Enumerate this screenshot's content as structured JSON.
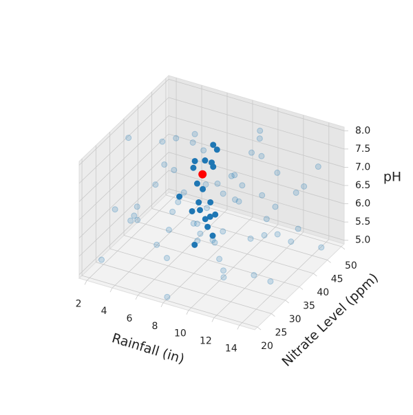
{
  "chart_data": {
    "type": "scatter3d",
    "xlabel": "Rainfall (in)",
    "ylabel": "Nitrate Level (ppm)",
    "zlabel": "pH",
    "xlim": [
      1.4,
      15.2
    ],
    "ylim": [
      19,
      51
    ],
    "zlim": [
      4.9,
      8.1
    ],
    "xticks": [
      2,
      4,
      6,
      8,
      10,
      12,
      14
    ],
    "yticks": [
      20,
      25,
      30,
      35,
      40,
      45,
      50
    ],
    "zticks": [
      {
        "value": 5,
        "label": "5.0"
      },
      5.5,
      {
        "value": 6,
        "label": "6.0"
      },
      6.5,
      {
        "value": 7,
        "label": "7.0"
      },
      7.5,
      {
        "value": 8,
        "label": "8.0"
      }
    ],
    "grid": true,
    "series": [
      {
        "color": "#1f77b4",
        "alpha": 0.2,
        "x": [
          2.5,
          3.1,
          4.0,
          5.2,
          6.3,
          7.5,
          8.8,
          9.9,
          11.2,
          12.4,
          13.6,
          14.7,
          2.2,
          3.7,
          4.9,
          6.1,
          7.0,
          8.3,
          9.4,
          10.6,
          11.8,
          13.0,
          14.2,
          2.9,
          4.4,
          5.6,
          6.8,
          8.1,
          9.2,
          10.3,
          11.5,
          12.7,
          14.0,
          3.3,
          5.0,
          6.6,
          7.8,
          9.6,
          10.9,
          12.1,
          13.3,
          14.5,
          2.6,
          4.2,
          5.9,
          7.2,
          8.6,
          10.0,
          11.0,
          12.9,
          13.8,
          3.9,
          6.0,
          9.0,
          10.7,
          12.3,
          14.9,
          2.0,
          7.6,
          11.4
        ],
        "y": [
          22,
          41,
          28,
          47,
          24,
          39,
          31,
          45,
          26,
          36,
          49,
          21,
          33,
          46,
          37,
          29,
          43,
          23,
          34,
          48,
          30,
          42,
          27,
          25,
          40,
          32,
          50,
          20,
          38,
          27,
          44,
          33,
          40,
          30,
          21,
          36,
          47,
          24,
          41,
          22,
          35,
          46,
          44,
          34,
          43,
          26,
          42,
          30,
          37,
          28,
          31,
          49,
          39,
          49,
          20,
          47,
          38,
          37,
          33,
          25
        ],
        "z": [
          5.3,
          7.2,
          6.1,
          5.8,
          7.6,
          5.1,
          6.7,
          7.9,
          5.6,
          6.4,
          7.0,
          6.2,
          7.8,
          5.5,
          6.9,
          5.2,
          6.3,
          7.4,
          5.9,
          6.6,
          7.7,
          5.4,
          6.8,
          6.5,
          7.5,
          5.7,
          6.0,
          5.0,
          7.1,
          6.2,
          5.3,
          7.3,
          6.0,
          6.0,
          6.7,
          7.9,
          5.6,
          6.4,
          7.6,
          5.8,
          6.9,
          5.1,
          6.3,
          5.0,
          7.1,
          6.8,
          6.1,
          5.5,
          8.0,
          6.5,
          5.2,
          6.9,
          5.4,
          7.3,
          7.0,
          6.3,
          7.4,
          5.6,
          6.0,
          7.8
        ]
      },
      {
        "color": "#1f77b4",
        "alpha": 1,
        "x": [
          8.2,
          8.5,
          8.0,
          8.3,
          7.2,
          8.2,
          7.3,
          7.6,
          6.2,
          7.6,
          7.5,
          8.2,
          7.6,
          7.2,
          8.4,
          8.8,
          7.8,
          8.2,
          8.6,
          7.4
        ],
        "y": [
          36,
          36,
          34,
          35,
          34,
          36,
          33,
          33,
          33,
          35,
          34,
          35,
          34,
          33,
          34,
          34,
          35,
          34,
          34,
          33
        ],
        "z": [
          8.0,
          7.9,
          7.7,
          7.6,
          7.6,
          7.4,
          7.5,
          7.1,
          6.6,
          6.8,
          6.5,
          6.5,
          6.3,
          6.3,
          6.2,
          6.3,
          6.0,
          5.9,
          5.7,
          5.4
        ]
      },
      {
        "color": "#ff0000",
        "alpha": 1,
        "x": [
          7.8
        ],
        "y": [
          34
        ],
        "z": [
          7.3
        ]
      }
    ]
  }
}
